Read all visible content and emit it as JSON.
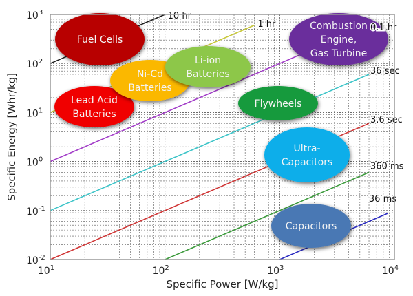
{
  "chart_data": {
    "type": "line",
    "xlabel": "Specific Power [W/kg]",
    "ylabel": "Specific Energy [Whr/kg]",
    "x_scale": "log",
    "y_scale": "log",
    "xlim": [
      10,
      10000
    ],
    "ylim": [
      0.01,
      1000
    ],
    "grid": true,
    "x_ticks": [
      {
        "base": "10",
        "exp": "1"
      },
      {
        "base": "10",
        "exp": "2"
      },
      {
        "base": "10",
        "exp": "3"
      },
      {
        "base": "10",
        "exp": "4"
      }
    ],
    "y_ticks": [
      {
        "base": "10",
        "exp": "-2"
      },
      {
        "base": "10",
        "exp": "-1"
      },
      {
        "base": "10",
        "exp": "0"
      },
      {
        "base": "10",
        "exp": "1"
      },
      {
        "base": "10",
        "exp": "2"
      },
      {
        "base": "10",
        "exp": "3"
      }
    ],
    "series": [
      {
        "name": "10 hr",
        "color": "#202020",
        "x": [
          10,
          100
        ],
        "y": [
          100,
          1000
        ]
      },
      {
        "name": "1 hr",
        "color": "#c8c83a",
        "x": [
          10,
          600
        ],
        "y": [
          10,
          600
        ]
      },
      {
        "name": "0.1 hr",
        "color": "#a23cc8",
        "x": [
          10,
          6000
        ],
        "y": [
          1,
          600
        ]
      },
      {
        "name": "36 sec",
        "color": "#3cc4c8",
        "x": [
          10,
          6000
        ],
        "y": [
          0.1,
          60
        ]
      },
      {
        "name": "3.6 sec",
        "color": "#d03535",
        "x": [
          10,
          6000
        ],
        "y": [
          0.01,
          6
        ]
      },
      {
        "name": "360 ms",
        "color": "#3a9a3a",
        "x": [
          100,
          6000
        ],
        "y": [
          0.01,
          0.6
        ]
      },
      {
        "name": "36 ms",
        "color": "#2a2ac0",
        "x": [
          1000,
          8700
        ],
        "y": [
          0.01,
          0.087
        ]
      }
    ],
    "regions": [
      {
        "label": [
          "Fuel Cells"
        ],
        "color": "#b80000"
      },
      {
        "label": [
          "Lead Acid",
          "Batteries"
        ],
        "color": "#f00000"
      },
      {
        "label": [
          "Ni-Cd",
          "Batteries"
        ],
        "color": "#fbb800"
      },
      {
        "label": [
          "Li-ion",
          "Batteries"
        ],
        "color": "#8dc74a"
      },
      {
        "label": [
          "Combustion",
          "Engine,",
          "Gas Turbine"
        ],
        "color": "#6a2d9c"
      },
      {
        "label": [
          "Flywheels"
        ],
        "color": "#139a3c"
      },
      {
        "label": [
          "Ultra-",
          "Capacitors"
        ],
        "color": "#0aaeea"
      },
      {
        "label": [
          "Capacitors"
        ],
        "color": "#4a78b4"
      }
    ]
  }
}
